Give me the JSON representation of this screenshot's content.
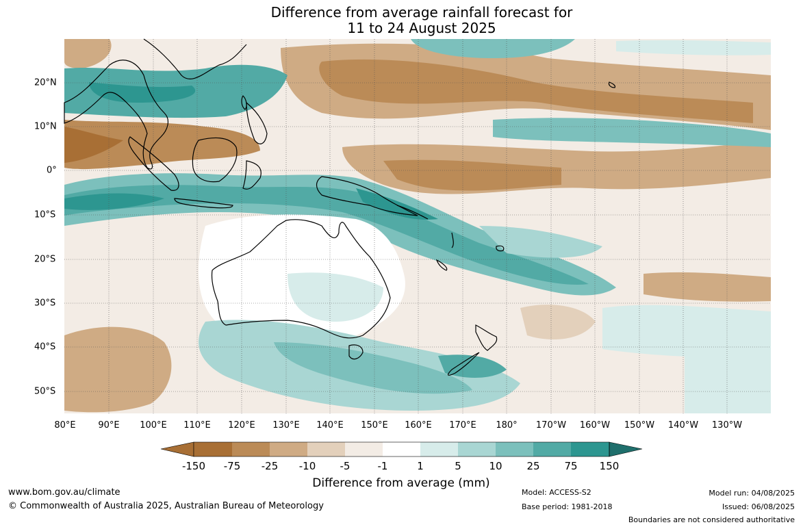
{
  "title_line1": "Difference from average rainfall forecast for",
  "title_line2": "11 to 24 August 2025",
  "x_axis_labels": [
    "80°E",
    "90°E",
    "100°E",
    "110°E",
    "120°E",
    "130°E",
    "140°E",
    "150°E",
    "160°E",
    "170°E",
    "180°",
    "170°W",
    "160°W",
    "150°W",
    "140°W",
    "130°W"
  ],
  "y_axis_labels": [
    "20°N",
    "10°N",
    "0°",
    "10°S",
    "20°S",
    "30°S",
    "40°S",
    "50°S"
  ],
  "colorbar": {
    "title": "Difference from average (mm)",
    "ticks": [
      "-150",
      "-75",
      "-25",
      "-10",
      "-5",
      "-1",
      "1",
      "5",
      "10",
      "25",
      "75",
      "150"
    ],
    "colors": [
      "#a86f35",
      "#bb8b57",
      "#cfab84",
      "#e3d0bb",
      "#f3ece5",
      "#ffffff",
      "#d7ecea",
      "#a9d6d3",
      "#7cc0bc",
      "#52aaa5",
      "#2d9690",
      "#1f6f6c"
    ]
  },
  "footer": {
    "website": "www.bom.gov.au/climate",
    "copyright": "© Commonwealth of Australia 2025, Australian Bureau of Meteorology",
    "model": "Model: ACCESS-S2",
    "base_period": "Base period: 1981-2018",
    "model_run": "Model run: 04/08/2025",
    "issued": "Issued: 06/08/2025",
    "disclaimer": "Boundaries are not considered authoritative"
  }
}
